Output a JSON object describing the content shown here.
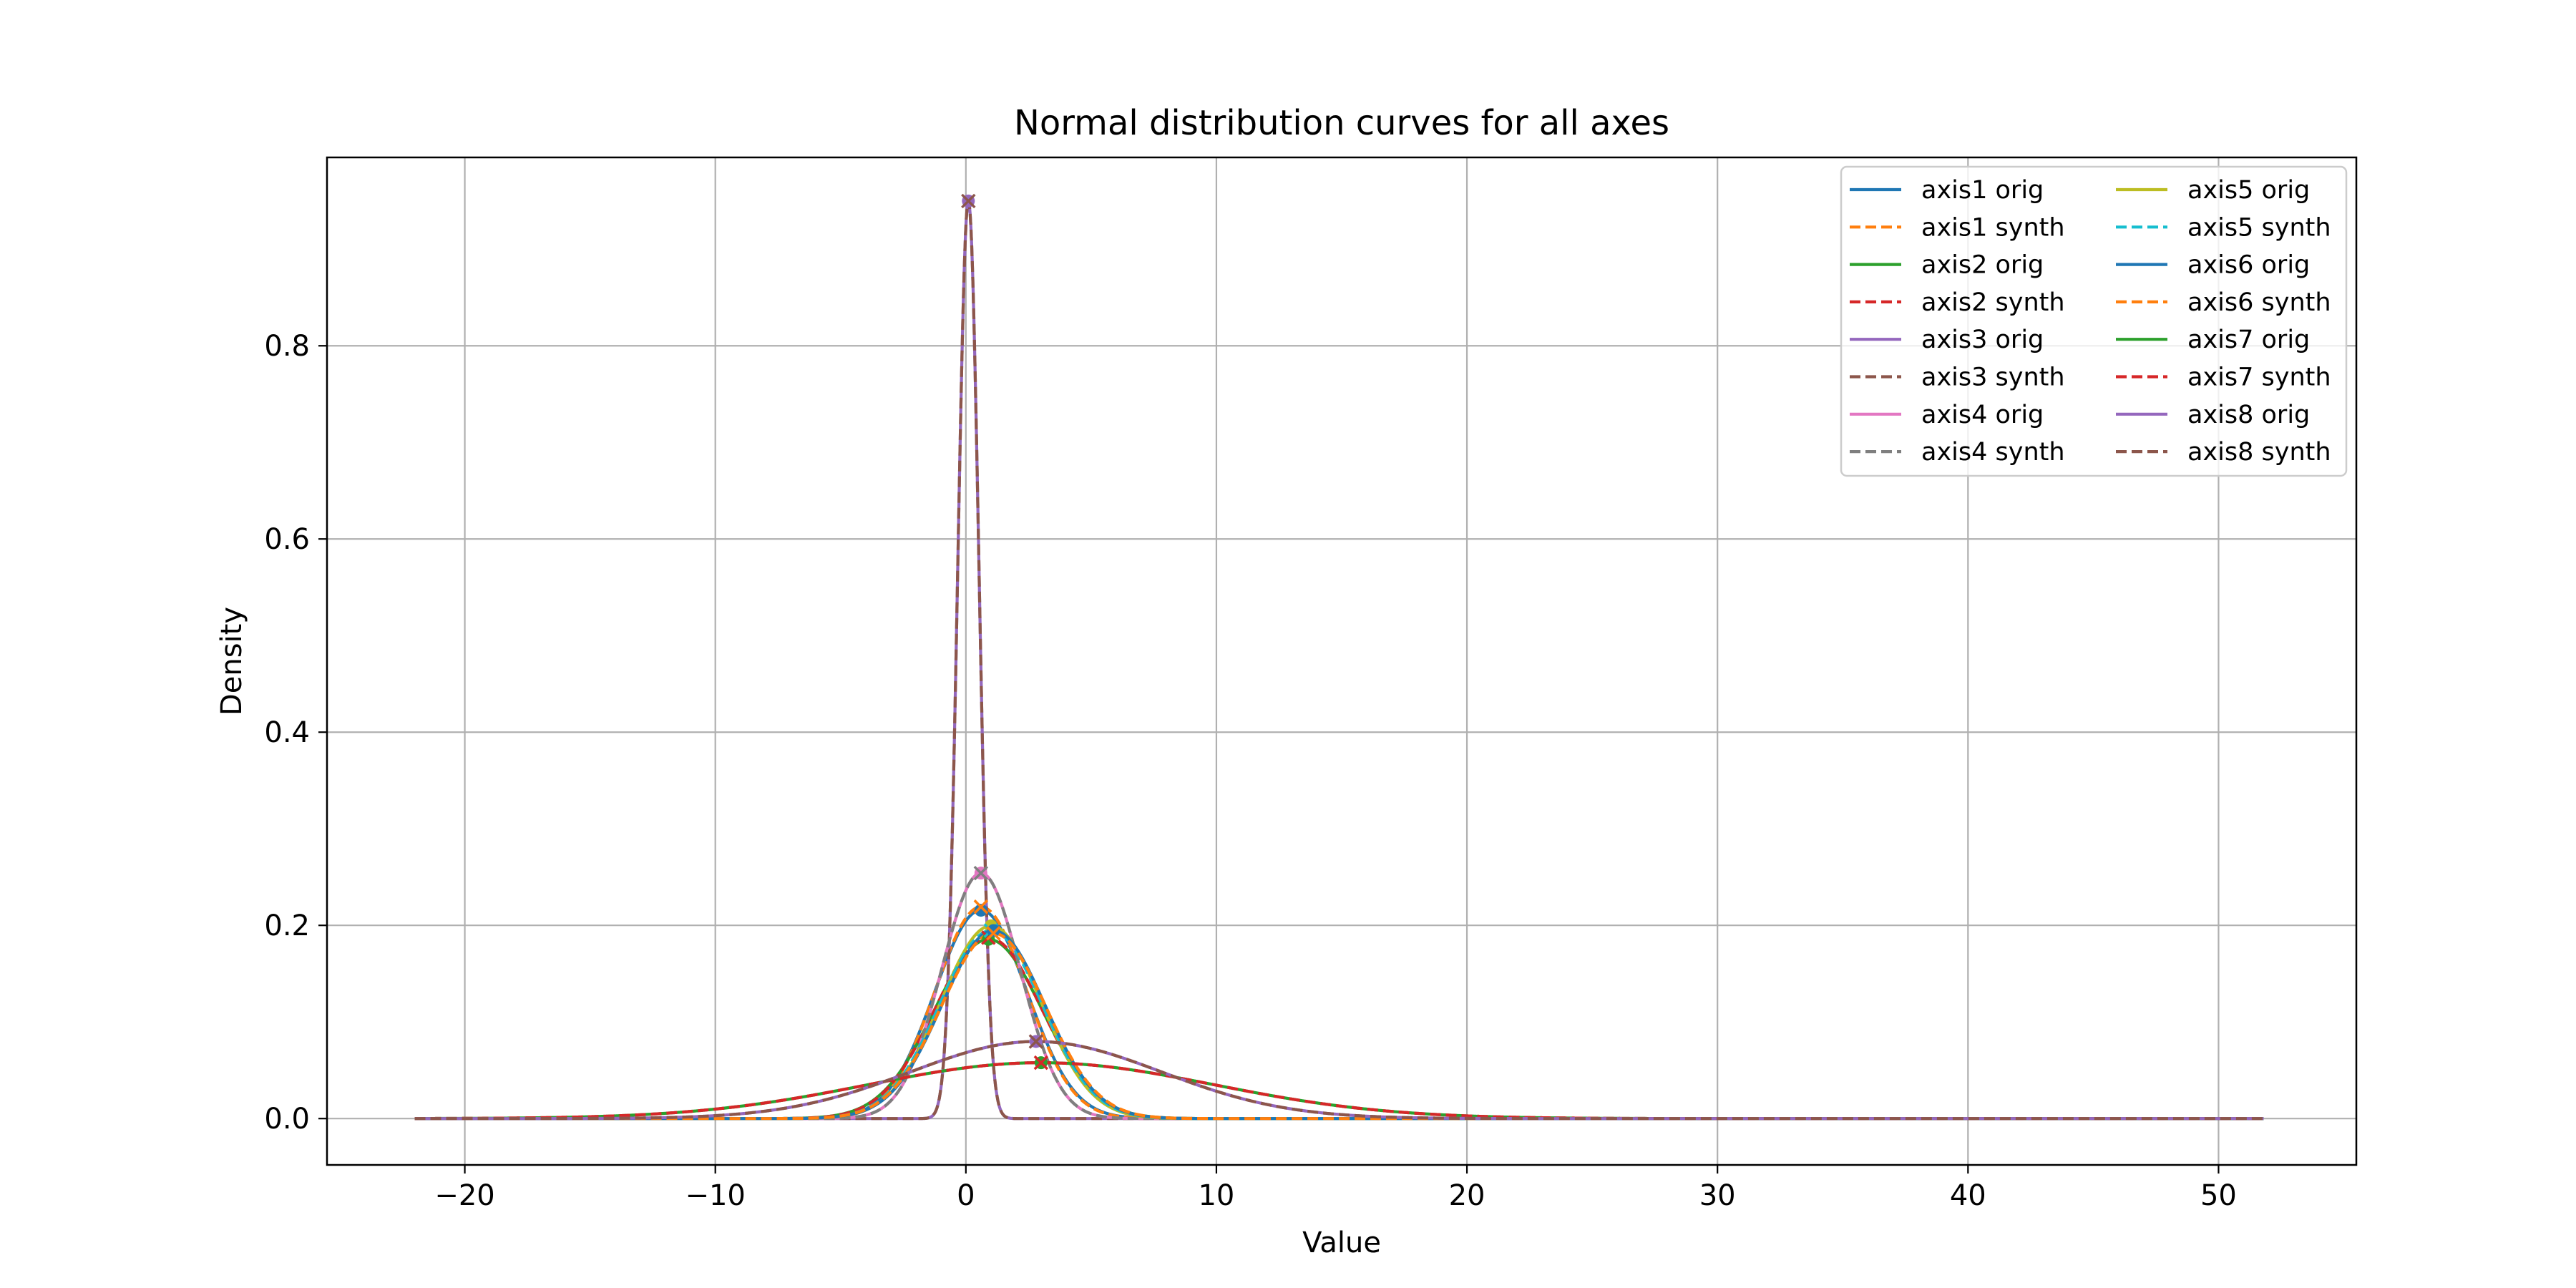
{
  "chart_data": {
    "type": "line",
    "title": "Normal distribution curves for all axes",
    "xlabel": "Value",
    "ylabel": "Density",
    "xlim": [
      -25.5,
      55.5
    ],
    "ylim": [
      -0.048,
      0.995
    ],
    "x_ticks": [
      -20,
      -10,
      0,
      10,
      20,
      30,
      40,
      50
    ],
    "x_tick_labels": [
      "−20",
      "−10",
      "0",
      "10",
      "20",
      "30",
      "40",
      "50"
    ],
    "y_ticks": [
      0.0,
      0.2,
      0.4,
      0.6,
      0.8
    ],
    "y_tick_labels": [
      "0.0",
      "0.2",
      "0.4",
      "0.6",
      "0.8"
    ],
    "grid": true,
    "legend_position": "top-right",
    "legend_columns": 2,
    "x_range": [
      -22,
      51.8
    ],
    "series": [
      {
        "name": "axis1 orig",
        "style": "solid",
        "color": "#1f77b4",
        "mean": 0.6,
        "std": 1.85,
        "peak_marker": "o"
      },
      {
        "name": "axis1 synth",
        "style": "dashed",
        "color": "#ff7f0e",
        "mean": 0.6,
        "std": 1.82,
        "peak_marker": "x"
      },
      {
        "name": "axis2 orig",
        "style": "solid",
        "color": "#2ca02c",
        "mean": 0.9,
        "std": 2.15,
        "peak_marker": "o"
      },
      {
        "name": "axis2 synth",
        "style": "dashed",
        "color": "#d62728",
        "mean": 0.9,
        "std": 2.13,
        "peak_marker": "x"
      },
      {
        "name": "axis3 orig",
        "style": "solid",
        "color": "#9467bd",
        "mean": 0.1,
        "std": 0.42,
        "peak_marker": "o"
      },
      {
        "name": "axis3 synth",
        "style": "dashed",
        "color": "#8c564b",
        "mean": 0.1,
        "std": 0.42,
        "peak_marker": "x"
      },
      {
        "name": "axis4 orig",
        "style": "solid",
        "color": "#e377c2",
        "mean": 0.6,
        "std": 1.57,
        "peak_marker": "o"
      },
      {
        "name": "axis4 synth",
        "style": "dashed",
        "color": "#7f7f7f",
        "mean": 0.6,
        "std": 1.57,
        "peak_marker": "x"
      },
      {
        "name": "axis5 orig",
        "style": "solid",
        "color": "#bcbd22",
        "mean": 1.0,
        "std": 2.0,
        "peak_marker": "o"
      },
      {
        "name": "axis5 synth",
        "style": "dashed",
        "color": "#17becf",
        "mean": 1.0,
        "std": 2.05,
        "peak_marker": "x"
      },
      {
        "name": "axis6 orig",
        "style": "solid",
        "color": "#1f77b4",
        "mean": 1.1,
        "std": 2.05,
        "peak_marker": "o"
      },
      {
        "name": "axis6 synth",
        "style": "dashed",
        "color": "#ff7f0e",
        "mean": 1.1,
        "std": 2.08,
        "peak_marker": "x"
      },
      {
        "name": "axis7 orig",
        "style": "solid",
        "color": "#2ca02c",
        "mean": 3.0,
        "std": 6.9,
        "peak_marker": "o"
      },
      {
        "name": "axis7 synth",
        "style": "dashed",
        "color": "#d62728",
        "mean": 3.0,
        "std": 6.9,
        "peak_marker": "x"
      },
      {
        "name": "axis8 orig",
        "style": "solid",
        "color": "#9467bd",
        "mean": 2.8,
        "std": 5.0,
        "peak_marker": "o"
      },
      {
        "name": "axis8 synth",
        "style": "dashed",
        "color": "#8c564b",
        "mean": 2.8,
        "std": 5.0,
        "peak_marker": "x"
      }
    ]
  }
}
